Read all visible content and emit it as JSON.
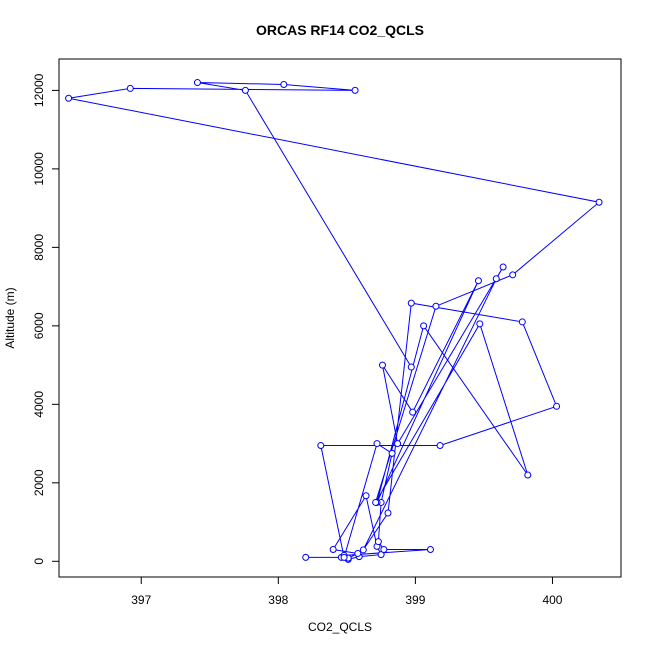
{
  "chart_data": {
    "type": "line",
    "title": "ORCAS RF14 CO2_QCLS",
    "xlabel": "CO2_QCLS",
    "ylabel": "Altitude (m)",
    "xlim": [
      396.4,
      400.5
    ],
    "ylim": [
      -400,
      12800
    ],
    "xticks": [
      397,
      398,
      399,
      400
    ],
    "yticks": [
      0,
      2000,
      4000,
      6000,
      8000,
      10000,
      12000
    ],
    "xtick_labels": [
      "397",
      "398",
      "399",
      "400"
    ],
    "ytick_labels": [
      "0",
      "2000",
      "4000",
      "6000",
      "8000",
      "10000",
      "12000"
    ],
    "grid": false,
    "legend": "none",
    "marker": "open-circle",
    "line_color": "#0000ff",
    "series": [
      {
        "x": [
          398.2,
          398.46,
          398.51,
          398.59,
          398.75,
          398.72,
          398.64,
          398.4,
          398.58,
          398.51,
          398.48,
          399.11,
          398.77,
          398.73,
          398.75,
          398.83,
          398.72,
          398.48,
          398.31,
          399.18,
          400.03,
          399.78,
          398.97,
          398.8,
          398.62,
          399.59,
          399.64,
          398.87,
          398.76,
          398.98,
          399.46,
          398.72,
          399.06,
          399.82,
          399.47,
          398.71,
          399.15,
          399.71,
          400.34,
          396.47,
          396.92,
          398.56,
          398.04,
          397.41,
          397.76,
          398.97
        ],
        "y": [
          100,
          100,
          50,
          120,
          170,
          380,
          1670,
          300,
          200,
          80,
          150,
          300,
          300,
          500,
          1500,
          2750,
          3000,
          100,
          2950,
          2950,
          3950,
          6100,
          6580,
          1230,
          290,
          7200,
          7500,
          3000,
          5000,
          3800,
          7150,
          1500,
          6000,
          2200,
          6050,
          1500,
          6500,
          7300,
          9150,
          11800,
          12050,
          12000,
          12150,
          12200,
          12000,
          4950
        ]
      }
    ],
    "segments": [
      {
        "x": [
          398.2,
          398.46,
          398.51,
          398.59,
          398.75,
          398.72,
          398.64
        ]
      },
      {
        "x": [
          398.4,
          398.58,
          398.51,
          398.48,
          399.11,
          398.77,
          398.73,
          398.75,
          398.83,
          398.72,
          398.48,
          398.31
        ]
      },
      {
        "x": [
          399.18,
          400.03,
          399.78,
          398.97,
          398.8,
          398.62
        ]
      },
      {
        "x": [
          399.59,
          399.64,
          398.87,
          398.76,
          398.98,
          399.46,
          398.72,
          399.06,
          399.82
        ]
      },
      {
        "x": [
          399.47,
          398.71,
          399.15,
          399.71,
          400.34,
          396.47,
          396.92,
          398.56,
          398.04,
          397.41,
          397.76,
          398.97
        ]
      }
    ]
  }
}
